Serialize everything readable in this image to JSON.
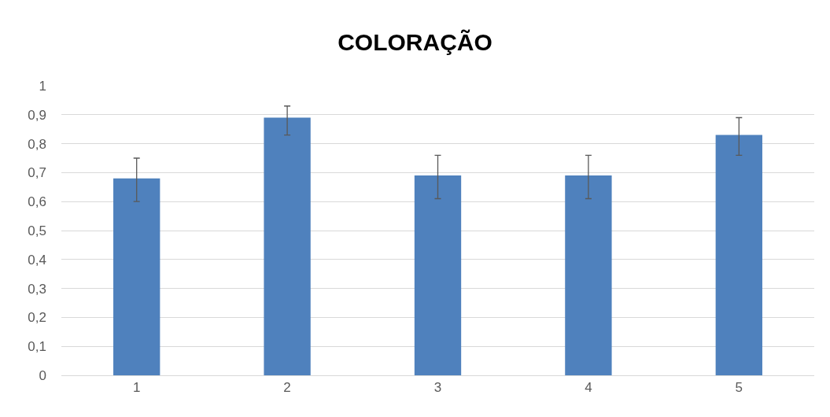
{
  "chart_data": {
    "type": "bar",
    "title": "COLORAÇÃO",
    "categories": [
      "1",
      "2",
      "3",
      "4",
      "5"
    ],
    "values": [
      0.68,
      0.89,
      0.69,
      0.69,
      0.83
    ],
    "errors": [
      [
        0.6,
        0.75
      ],
      [
        0.83,
        0.93
      ],
      [
        0.61,
        0.76
      ],
      [
        0.61,
        0.76
      ],
      [
        0.76,
        0.89
      ]
    ],
    "color": "#4f81bd",
    "ylim": [
      0,
      1
    ],
    "yticks": [
      0,
      {
        "value": 0.1,
        "label": "0,1"
      },
      {
        "value": 0.2,
        "label": "0,2"
      },
      {
        "value": 0.3,
        "label": "0,3"
      },
      {
        "value": 0.4,
        "label": "0,4"
      },
      {
        "value": 0.5,
        "label": "0,5"
      },
      {
        "value": 0.6,
        "label": "0,6"
      },
      {
        "value": 0.7,
        "label": "0,7"
      },
      {
        "value": 0.8,
        "label": "0,8"
      },
      {
        "value": 0.9,
        "label": "0,9"
      },
      1
    ],
    "grid": "y",
    "legend": false
  }
}
